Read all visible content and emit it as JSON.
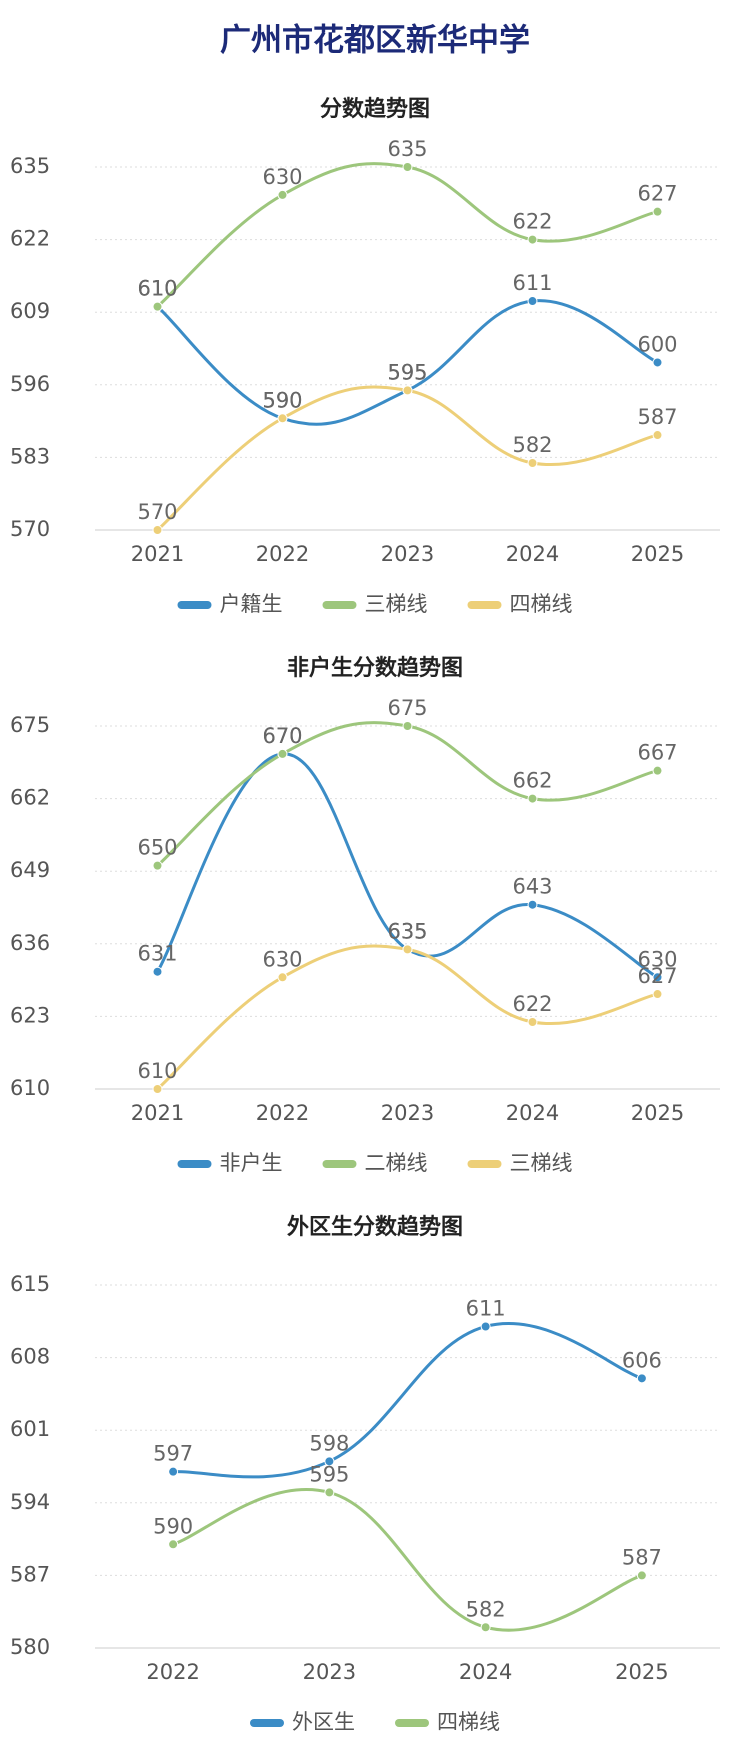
{
  "title": "广州市花都区新华中学",
  "chart_data": [
    {
      "type": "line",
      "title": "分数趋势图",
      "categories": [
        "2021",
        "2022",
        "2023",
        "2024",
        "2025"
      ],
      "ylim": [
        570,
        635
      ],
      "yticks": [
        570,
        583,
        596,
        609,
        622,
        635
      ],
      "grid": true,
      "series": [
        {
          "name": "户籍生",
          "color": "#3b8cc6",
          "values": [
            610,
            590,
            595,
            611,
            600
          ]
        },
        {
          "name": "三梯线",
          "color": "#9dc67c",
          "values": [
            610,
            630,
            635,
            622,
            627
          ]
        },
        {
          "name": "四梯线",
          "color": "#edcf78",
          "values": [
            570,
            590,
            595,
            582,
            587
          ]
        }
      ]
    },
    {
      "type": "line",
      "title": "非户生分数趋势图",
      "categories": [
        "2021",
        "2022",
        "2023",
        "2024",
        "2025"
      ],
      "ylim": [
        610,
        675
      ],
      "yticks": [
        610,
        623,
        636,
        649,
        662,
        675
      ],
      "grid": true,
      "series": [
        {
          "name": "非户生",
          "color": "#3b8cc6",
          "values": [
            631,
            670,
            635,
            643,
            630
          ]
        },
        {
          "name": "二梯线",
          "color": "#9dc67c",
          "values": [
            650,
            670,
            675,
            662,
            667
          ]
        },
        {
          "name": "三梯线",
          "color": "#edcf78",
          "values": [
            610,
            630,
            635,
            622,
            627
          ]
        }
      ]
    },
    {
      "type": "line",
      "title": "外区生分数趋势图",
      "categories": [
        "2022",
        "2023",
        "2024",
        "2025"
      ],
      "ylim": [
        580,
        615
      ],
      "yticks": [
        580,
        587,
        594,
        601,
        608,
        615
      ],
      "grid": true,
      "series": [
        {
          "name": "外区生",
          "color": "#3b8cc6",
          "values": [
            597,
            598,
            611,
            606
          ]
        },
        {
          "name": "四梯线",
          "color": "#9dc67c",
          "values": [
            590,
            595,
            582,
            587
          ]
        }
      ]
    }
  ]
}
